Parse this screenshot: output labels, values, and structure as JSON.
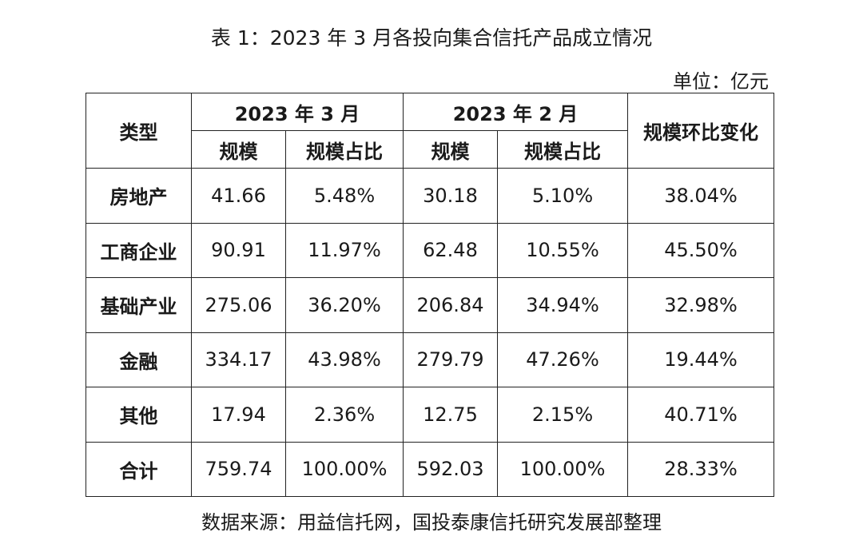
{
  "title": "表 1：2023 年 3 月各投向集合信托产品成立情况",
  "unit": "单位：亿元",
  "table": {
    "header_type": "类型",
    "group_mar": "2023 年 3 月",
    "group_feb": "2023 年 2 月",
    "header_change": "规模环比变化",
    "sub_scale": "规模",
    "sub_ratio": "规模占比",
    "rows": [
      {
        "type": "房地产",
        "mar_scale": "41.66",
        "mar_ratio": "5.48%",
        "feb_scale": "30.18",
        "feb_ratio": "5.10%",
        "change": "38.04%"
      },
      {
        "type": "工商企业",
        "mar_scale": "90.91",
        "mar_ratio": "11.97%",
        "feb_scale": "62.48",
        "feb_ratio": "10.55%",
        "change": "45.50%"
      },
      {
        "type": "基础产业",
        "mar_scale": "275.06",
        "mar_ratio": "36.20%",
        "feb_scale": "206.84",
        "feb_ratio": "34.94%",
        "change": "32.98%"
      },
      {
        "type": "金融",
        "mar_scale": "334.17",
        "mar_ratio": "43.98%",
        "feb_scale": "279.79",
        "feb_ratio": "47.26%",
        "change": "19.44%"
      },
      {
        "type": "其他",
        "mar_scale": "17.94",
        "mar_ratio": "2.36%",
        "feb_scale": "12.75",
        "feb_ratio": "2.15%",
        "change": "40.71%"
      },
      {
        "type": "合计",
        "mar_scale": "759.74",
        "mar_ratio": "100.00%",
        "feb_scale": "592.03",
        "feb_ratio": "100.00%",
        "change": "28.33%"
      }
    ]
  },
  "source": "数据来源：用益信托网，国投泰康信托研究发展部整理"
}
